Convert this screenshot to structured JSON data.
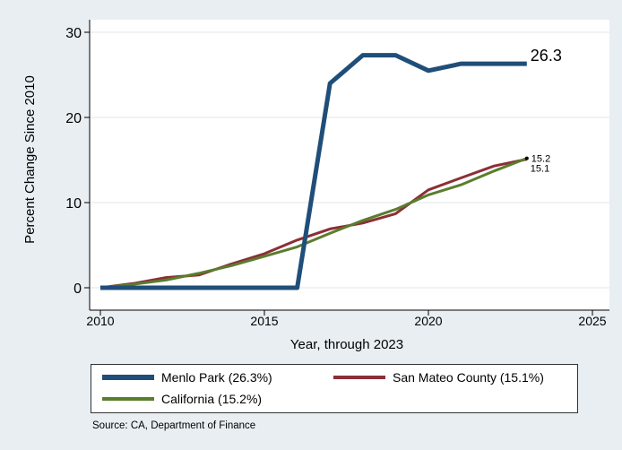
{
  "chart_data": {
    "type": "line",
    "xlabel": "Year, through 2023",
    "ylabel": "Percent Change Since 2010",
    "xlim": [
      2010,
      2025
    ],
    "ylim": [
      -1,
      30
    ],
    "xticks": [
      2010,
      2015,
      2020,
      2025
    ],
    "yticks": [
      0,
      10,
      20,
      30
    ],
    "grid": true,
    "legend_position": "bottom",
    "series": [
      {
        "name": "Menlo Park (26.3%)",
        "color": "#1f4e79",
        "x": [
          2010,
          2011,
          2012,
          2013,
          2014,
          2015,
          2016,
          2017,
          2018,
          2019,
          2020,
          2021,
          2022,
          2023
        ],
        "values": [
          0,
          0,
          0,
          0,
          0,
          0,
          0,
          24.0,
          27.3,
          27.3,
          25.5,
          26.3,
          26.3,
          26.3
        ],
        "end_label": "26.3"
      },
      {
        "name": "San Mateo County (15.1%)",
        "color": "#8b2f35",
        "x": [
          2010,
          2011,
          2012,
          2013,
          2014,
          2015,
          2016,
          2017,
          2018,
          2019,
          2020,
          2021,
          2022,
          2023
        ],
        "values": [
          0,
          0.5,
          1.2,
          1.5,
          2.8,
          4.0,
          5.6,
          6.9,
          7.6,
          8.7,
          11.5,
          12.9,
          14.3,
          15.1
        ],
        "end_label": "15.1"
      },
      {
        "name": "California (15.2%)",
        "color": "#5a7d2e",
        "x": [
          2010,
          2011,
          2012,
          2013,
          2014,
          2015,
          2016,
          2017,
          2018,
          2019,
          2020,
          2021,
          2022,
          2023
        ],
        "values": [
          0,
          0.4,
          0.9,
          1.7,
          2.6,
          3.7,
          4.8,
          6.4,
          7.9,
          9.2,
          10.9,
          12.1,
          13.7,
          15.2
        ],
        "end_label": "15.2"
      }
    ]
  },
  "source_text": "Source: CA, Department of Finance"
}
